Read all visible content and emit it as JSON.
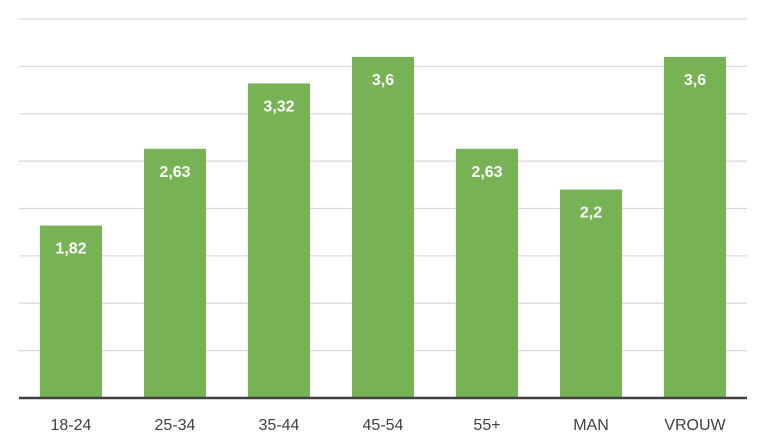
{
  "chart_data": {
    "type": "bar",
    "categories": [
      "18-24",
      "25-34",
      "35-44",
      "45-54",
      "55+",
      "MAN",
      "VROUW"
    ],
    "values": [
      1.82,
      2.63,
      3.32,
      3.6,
      2.63,
      2.2,
      3.6
    ],
    "value_labels": [
      "1,82",
      "2,63",
      "3,32",
      "3,6",
      "2,63",
      "2,2",
      "3,6"
    ],
    "ylim": [
      0,
      4
    ],
    "gridlines": [
      0.5,
      1.0,
      1.5,
      2.0,
      2.5,
      3.0,
      3.5,
      4.0
    ],
    "grid": true,
    "colors": {
      "bar": "#77b354",
      "grid": "#d9d9d9",
      "axis": "#404040"
    }
  }
}
